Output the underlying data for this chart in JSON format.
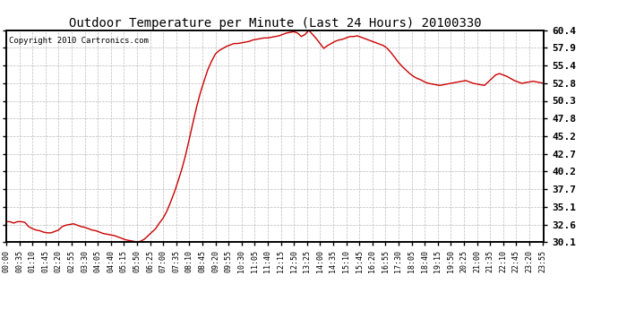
{
  "title": "Outdoor Temperature per Minute (Last 24 Hours) 20100330",
  "copyright": "Copyright 2010 Cartronics.com",
  "line_color": "#cc0000",
  "bg_color": "#ffffff",
  "grid_color": "#aaaaaa",
  "yticks": [
    30.1,
    32.6,
    35.1,
    37.7,
    40.2,
    42.7,
    45.2,
    47.8,
    50.3,
    52.8,
    55.4,
    57.9,
    60.4
  ],
  "ymin": 30.1,
  "ymax": 60.4,
  "xtick_labels": [
    "00:00",
    "00:35",
    "01:10",
    "01:45",
    "02:20",
    "02:55",
    "03:30",
    "04:05",
    "04:40",
    "05:15",
    "05:50",
    "06:25",
    "07:00",
    "07:35",
    "08:10",
    "08:45",
    "09:20",
    "09:55",
    "10:30",
    "11:05",
    "11:40",
    "12:15",
    "12:50",
    "13:25",
    "14:00",
    "14:35",
    "15:10",
    "15:45",
    "16:20",
    "16:55",
    "17:30",
    "18:05",
    "18:40",
    "19:15",
    "19:50",
    "20:25",
    "21:00",
    "21:35",
    "22:10",
    "22:45",
    "23:20",
    "23:55"
  ],
  "profile": {
    "00:00": 33.0,
    "00:10": 33.0,
    "00:20": 32.8,
    "00:30": 33.0,
    "00:40": 33.0,
    "00:50": 32.9,
    "01:00": 32.3,
    "01:10": 32.0,
    "01:20": 31.8,
    "01:30": 31.7,
    "01:40": 31.5,
    "01:50": 31.4,
    "02:00": 31.4,
    "02:10": 31.6,
    "02:20": 31.8,
    "02:30": 32.3,
    "02:40": 32.5,
    "02:50": 32.6,
    "03:00": 32.7,
    "03:10": 32.5,
    "03:20": 32.3,
    "03:30": 32.2,
    "03:40": 32.0,
    "03:50": 31.8,
    "04:00": 31.7,
    "04:10": 31.5,
    "04:20": 31.3,
    "04:30": 31.2,
    "04:40": 31.1,
    "04:50": 31.0,
    "05:00": 30.8,
    "05:10": 30.6,
    "05:20": 30.4,
    "05:30": 30.3,
    "05:40": 30.2,
    "05:50": 30.1,
    "06:00": 30.2,
    "06:10": 30.5,
    "06:20": 31.0,
    "06:30": 31.5,
    "06:40": 32.0,
    "06:50": 32.8,
    "07:00": 33.5,
    "07:10": 34.5,
    "07:20": 35.8,
    "07:30": 37.2,
    "07:40": 38.8,
    "07:50": 40.5,
    "08:00": 42.5,
    "08:10": 44.8,
    "08:20": 47.2,
    "08:30": 49.5,
    "08:40": 51.5,
    "08:50": 53.2,
    "09:00": 54.8,
    "09:10": 56.0,
    "09:20": 57.0,
    "09:30": 57.5,
    "09:40": 57.8,
    "09:50": 58.1,
    "10:00": 58.3,
    "10:10": 58.5,
    "10:20": 58.5,
    "10:30": 58.6,
    "10:40": 58.7,
    "10:50": 58.8,
    "11:00": 59.0,
    "11:10": 59.1,
    "11:20": 59.2,
    "11:30": 59.3,
    "11:40": 59.3,
    "11:50": 59.4,
    "12:00": 59.5,
    "12:10": 59.6,
    "12:20": 59.8,
    "12:30": 60.0,
    "12:40": 60.1,
    "12:50": 60.2,
    "13:00": 60.0,
    "13:10": 59.5,
    "13:20": 59.8,
    "13:30": 60.4,
    "13:40": 59.8,
    "13:50": 59.2,
    "14:00": 58.5,
    "14:10": 57.8,
    "14:20": 58.2,
    "14:30": 58.5,
    "14:40": 58.8,
    "14:50": 59.0,
    "15:00": 59.1,
    "15:10": 59.3,
    "15:20": 59.5,
    "15:30": 59.5,
    "15:40": 59.6,
    "15:50": 59.4,
    "16:00": 59.2,
    "16:10": 59.0,
    "16:20": 58.8,
    "16:30": 58.6,
    "16:40": 58.4,
    "16:50": 58.2,
    "17:00": 57.8,
    "17:10": 57.2,
    "17:20": 56.5,
    "17:30": 55.8,
    "17:40": 55.2,
    "17:50": 54.7,
    "18:00": 54.2,
    "18:10": 53.8,
    "18:20": 53.5,
    "18:30": 53.3,
    "18:40": 53.0,
    "18:50": 52.8,
    "19:00": 52.7,
    "19:10": 52.6,
    "19:20": 52.5,
    "19:30": 52.6,
    "19:40": 52.7,
    "19:50": 52.8,
    "20:00": 52.9,
    "20:10": 53.0,
    "20:20": 53.1,
    "20:30": 53.2,
    "20:40": 53.0,
    "20:50": 52.8,
    "21:00": 52.7,
    "21:10": 52.6,
    "21:20": 52.5,
    "21:30": 53.0,
    "21:40": 53.5,
    "21:50": 54.0,
    "22:00": 54.2,
    "22:10": 54.0,
    "22:20": 53.8,
    "22:30": 53.5,
    "22:40": 53.2,
    "22:50": 53.0,
    "23:00": 52.8,
    "23:10": 52.9,
    "23:20": 53.0,
    "23:30": 53.1,
    "23:40": 53.0,
    "23:50": 52.9,
    "23:59": 52.8
  }
}
